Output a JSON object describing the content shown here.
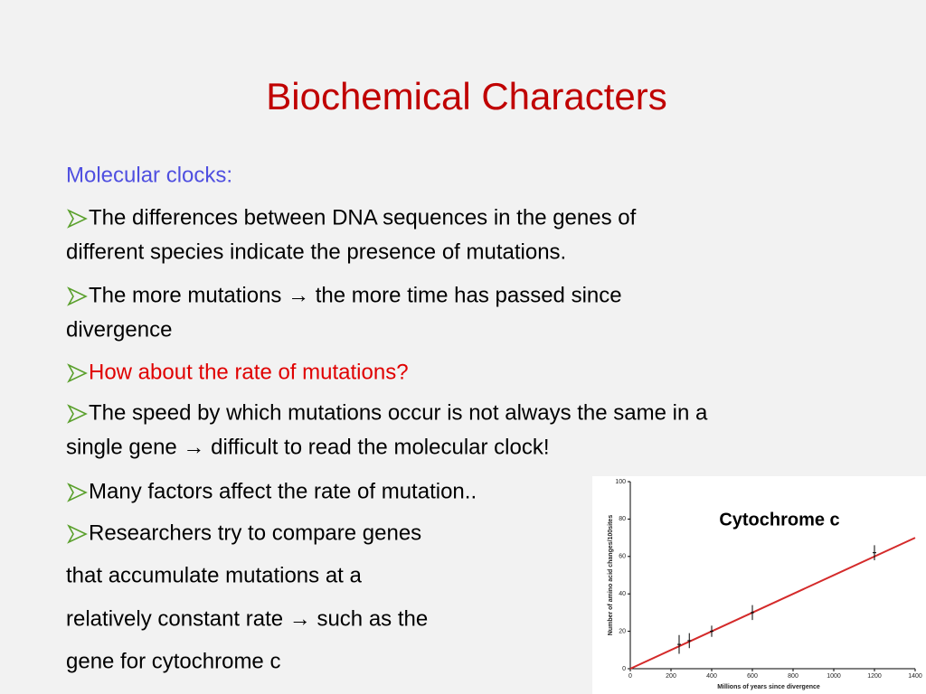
{
  "slide": {
    "title": "Biochemical Characters",
    "subtitle": "Molecular clocks:",
    "items": [
      {
        "bullet": true,
        "lines": [
          "The differences between DNA sequences in the genes of",
          "different species indicate the presence of mutations."
        ]
      },
      {
        "bullet": true,
        "lines": [
          "The more mutations → the more time has passed since",
          "divergence"
        ]
      },
      {
        "bullet": true,
        "color": "#e00000",
        "lines": [
          "How about the rate of mutations?"
        ]
      },
      {
        "bullet": true,
        "lines": [
          "The speed by which mutations occur is not always the same in a",
          "single gene → difficult to read the molecular clock!"
        ]
      },
      {
        "bullet": true,
        "lines": [
          "Many factors affect the rate of mutation.."
        ]
      },
      {
        "bullet": true,
        "lines": [
          "Researchers try to compare genes"
        ]
      },
      {
        "bullet": false,
        "lines": [
          "that accumulate mutations at a"
        ]
      },
      {
        "bullet": false,
        "lines": [
          "relatively constant rate → such as the"
        ]
      },
      {
        "bullet": false,
        "lines": [
          "gene for cytochrome c"
        ]
      }
    ]
  },
  "figure": {
    "type": "scatter",
    "title": "Cytochrome c",
    "x_label": "Millions of years since divergence",
    "y_label": "Number of amino acid changes/100sites",
    "x": [
      240,
      290,
      400,
      600,
      1200
    ],
    "values": [
      13,
      15,
      20,
      30,
      62
    ],
    "errors": [
      5,
      4,
      3,
      4,
      4
    ],
    "fit_line": {
      "x": [
        0,
        1400
      ],
      "values": [
        0,
        70
      ],
      "color": "#d42a2a"
    },
    "xlim": [
      0,
      1400
    ],
    "xticks": [
      0,
      200,
      400,
      600,
      800,
      1000,
      1200,
      1400
    ],
    "ylim": [
      0,
      100
    ],
    "yticks": [
      0,
      20,
      40,
      60,
      80,
      100
    ]
  }
}
